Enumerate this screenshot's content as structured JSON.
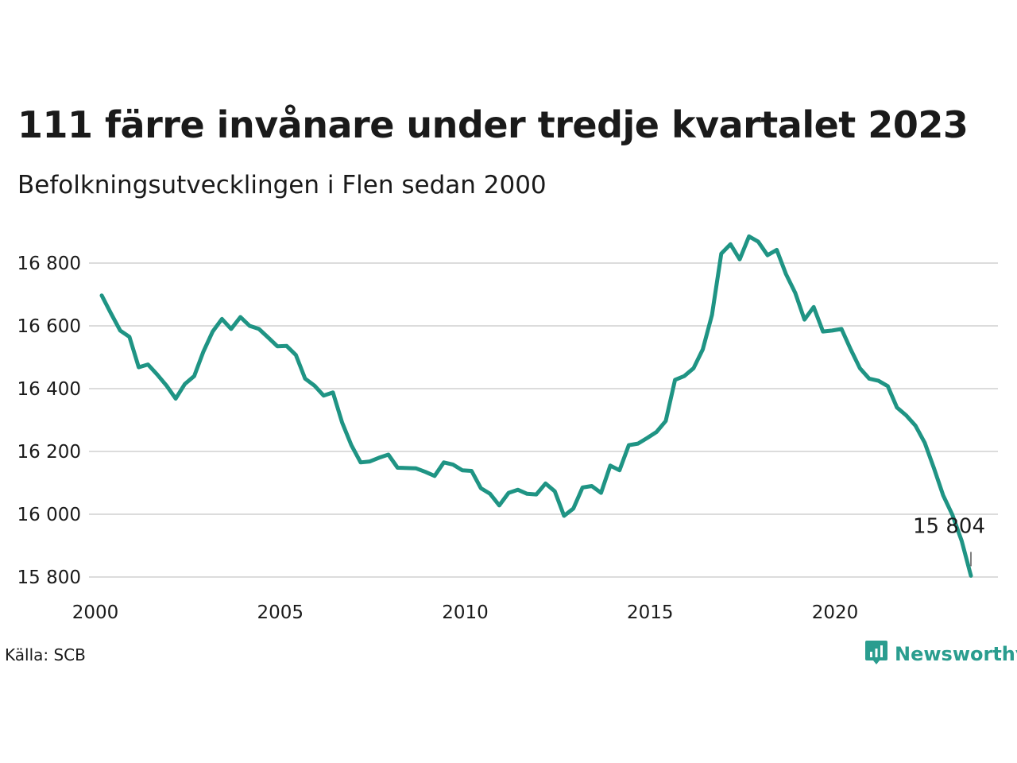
{
  "title": "111 färre invånare under tredje kvartalet 2023",
  "subtitle": "Befolkningsutvecklingen i Flen sedan 2000",
  "source": "Källa: SCB",
  "brand": {
    "name": "Newsworthy",
    "icon": "newsworthy-logo-icon",
    "color": "#2a9d8f"
  },
  "line_color": "#1f9484",
  "chart_data": {
    "type": "line",
    "title": "111 färre invånare under tredje kvartalet 2023",
    "subtitle": "Befolkningsutvecklingen i Flen sedan 2000",
    "xlabel": "",
    "ylabel": "",
    "x_ticks": [
      2000,
      2005,
      2010,
      2015,
      2020
    ],
    "y_ticks": [
      15800,
      16000,
      16200,
      16400,
      16600,
      16800
    ],
    "y_tick_labels": [
      "15 800",
      "16 000",
      "16 200",
      "16 400",
      "16 600",
      "16 800"
    ],
    "x_tick_labels": [
      "2000",
      "2005",
      "2010",
      "2015",
      "2020"
    ],
    "xlim": [
      2000,
      2024
    ],
    "ylim": [
      15800,
      16920
    ],
    "grid": "horizontal",
    "end_label": "15 804",
    "series": [
      {
        "x": [
          2000.0,
          2000.25,
          2000.5,
          2000.75,
          2001.0,
          2001.25,
          2001.5,
          2001.75,
          2002.0,
          2002.25,
          2002.5,
          2002.75,
          2003.0,
          2003.25,
          2003.5,
          2003.75,
          2004.0,
          2004.25,
          2004.5,
          2004.75,
          2005.0,
          2005.25,
          2005.5,
          2005.75,
          2006.0,
          2006.25,
          2006.5,
          2006.75,
          2007.0,
          2007.25,
          2007.5,
          2007.75,
          2008.0,
          2008.25,
          2008.5,
          2008.75,
          2009.0,
          2009.25,
          2009.5,
          2009.75,
          2010.0,
          2010.25,
          2010.5,
          2010.75,
          2011.0,
          2011.25,
          2011.5,
          2011.75,
          2012.0,
          2012.25,
          2012.5,
          2012.75,
          2013.0,
          2013.25,
          2013.5,
          2013.75,
          2014.0,
          2014.25,
          2014.5,
          2014.75,
          2015.0,
          2015.25,
          2015.5,
          2015.75,
          2016.0,
          2016.25,
          2016.5,
          2016.75,
          2017.0,
          2017.25,
          2017.5,
          2017.75,
          2018.0,
          2018.25,
          2018.5,
          2018.75,
          2019.0,
          2019.25,
          2019.5,
          2019.75,
          2020.0,
          2020.25,
          2020.5,
          2020.75,
          2021.0,
          2021.25,
          2021.5,
          2021.75,
          2022.0,
          2022.25,
          2022.5,
          2022.75,
          2023.0,
          2023.25,
          2023.5
        ],
        "values": [
          16697,
          16640,
          16585,
          16565,
          16468,
          16477,
          16445,
          16410,
          16368,
          16415,
          16440,
          16518,
          16582,
          16622,
          16590,
          16628,
          16600,
          16590,
          16563,
          16535,
          16536,
          16507,
          16432,
          16410,
          16378,
          16388,
          16292,
          16220,
          16165,
          16168,
          16180,
          16190,
          16148,
          16147,
          16146,
          16135,
          16122,
          16165,
          16158,
          16140,
          16138,
          16083,
          16065,
          16028,
          16068,
          16078,
          16065,
          16063,
          16098,
          16073,
          15995,
          16018,
          16085,
          16090,
          16068,
          16155,
          16140,
          16220,
          16225,
          16243,
          16262,
          16297,
          16428,
          16440,
          16465,
          16525,
          16635,
          16830,
          16860,
          16812,
          16885,
          16868,
          16825,
          16842,
          16765,
          16705,
          16620,
          16660,
          16582,
          16585,
          16590,
          16525,
          16465,
          16432,
          16425,
          16408,
          16340,
          16315,
          16282,
          16228,
          16147,
          16060,
          15998,
          15915,
          15804
        ]
      }
    ]
  }
}
